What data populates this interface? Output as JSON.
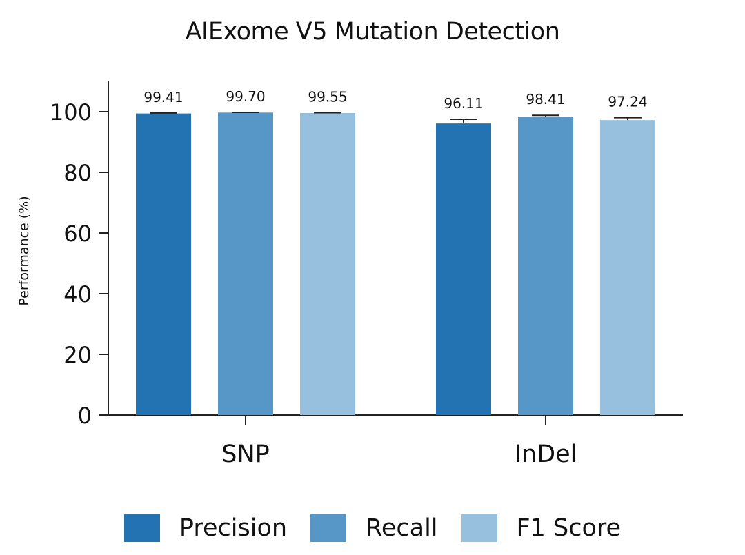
{
  "chart_data": {
    "type": "bar",
    "title": "AIExome V5 Mutation Detection",
    "ylabel": "Performance (%)",
    "xlabel": "",
    "categories": [
      "SNP",
      "InDel"
    ],
    "ylim": [
      0,
      110
    ],
    "yticks": [
      0,
      20,
      40,
      60,
      80,
      100
    ],
    "series": [
      {
        "name": "Precision",
        "color": "#2373b3",
        "values": [
          99.41,
          96.11
        ],
        "labels": [
          "99.41",
          "96.11"
        ],
        "errors": [
          0.15,
          1.4
        ]
      },
      {
        "name": "Recall",
        "color": "#5797c8",
        "values": [
          99.7,
          98.41
        ],
        "labels": [
          "99.70",
          "98.41"
        ],
        "errors": [
          0.08,
          0.4
        ]
      },
      {
        "name": "F1 Score",
        "color": "#97c0df",
        "values": [
          99.55,
          97.24
        ],
        "labels": [
          "99.55",
          "97.24"
        ],
        "errors": [
          0.1,
          0.8
        ]
      }
    ],
    "grid": false,
    "legend_position": "bottom"
  }
}
